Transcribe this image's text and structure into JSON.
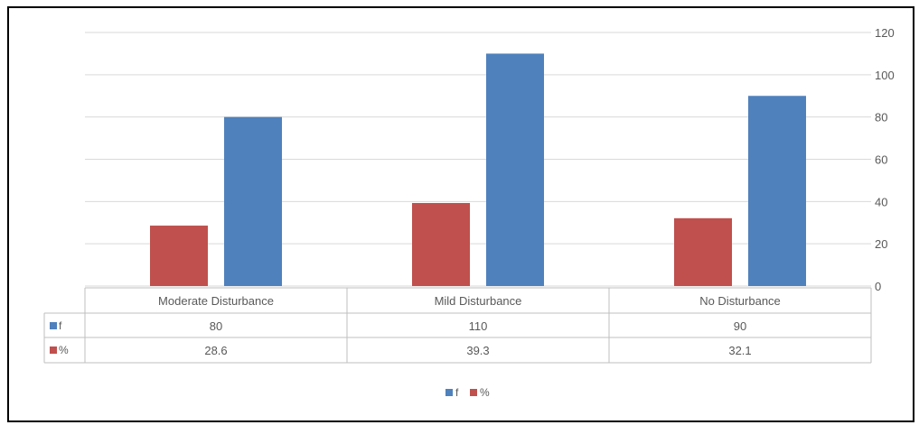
{
  "chart_data": {
    "type": "bar",
    "categories": [
      "Moderate Disturbance",
      "Mild Disturbance",
      "No Disturbance"
    ],
    "series": [
      {
        "name": "%",
        "color": "#C0504D",
        "values": [
          28.6,
          39.3,
          32.1
        ],
        "table_labels": [
          "28.6",
          "39.3",
          "32.1"
        ]
      },
      {
        "name": "f",
        "color": "#4F81BD",
        "values": [
          80,
          110,
          90
        ],
        "table_labels": [
          "80",
          "110",
          "90"
        ]
      }
    ],
    "legend_order": [
      "f",
      "%"
    ],
    "y_ticks": [
      "0",
      "20",
      "40",
      "60",
      "80",
      "100",
      "120"
    ],
    "ylim": [
      0,
      120
    ],
    "y_axis_side": "right",
    "grid": true,
    "data_table": true,
    "legend_position": "bottom",
    "title": "",
    "xlabel": "",
    "ylabel": ""
  }
}
